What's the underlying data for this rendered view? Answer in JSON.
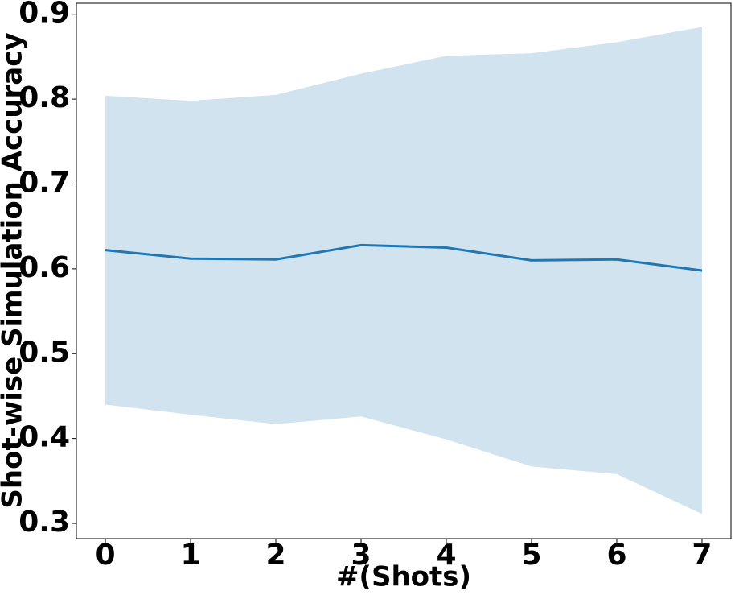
{
  "chart_data": {
    "type": "line",
    "x_label": "#(Shots)",
    "y_label": "Shot-wise Simulation Accuracy",
    "x": [
      0,
      1,
      2,
      3,
      4,
      5,
      6,
      7
    ],
    "series": [
      {
        "color": "#1f77b4",
        "values": [
          0.622,
          0.612,
          0.611,
          0.628,
          0.625,
          0.61,
          0.611,
          0.598
        ],
        "upper": [
          0.804,
          0.798,
          0.805,
          0.83,
          0.851,
          0.854,
          0.867,
          0.885
        ],
        "lower": [
          0.44,
          0.428,
          0.417,
          0.426,
          0.399,
          0.367,
          0.358,
          0.311
        ],
        "band_color": "#d2e3f0"
      }
    ],
    "xlim": [
      -0.34,
      7.34
    ],
    "ylim": [
      0.282,
      0.913
    ],
    "xticks": [
      0,
      1,
      2,
      3,
      4,
      5,
      6,
      7
    ],
    "yticks": [
      0.3,
      0.4,
      0.5,
      0.6,
      0.7,
      0.8,
      0.9
    ]
  }
}
